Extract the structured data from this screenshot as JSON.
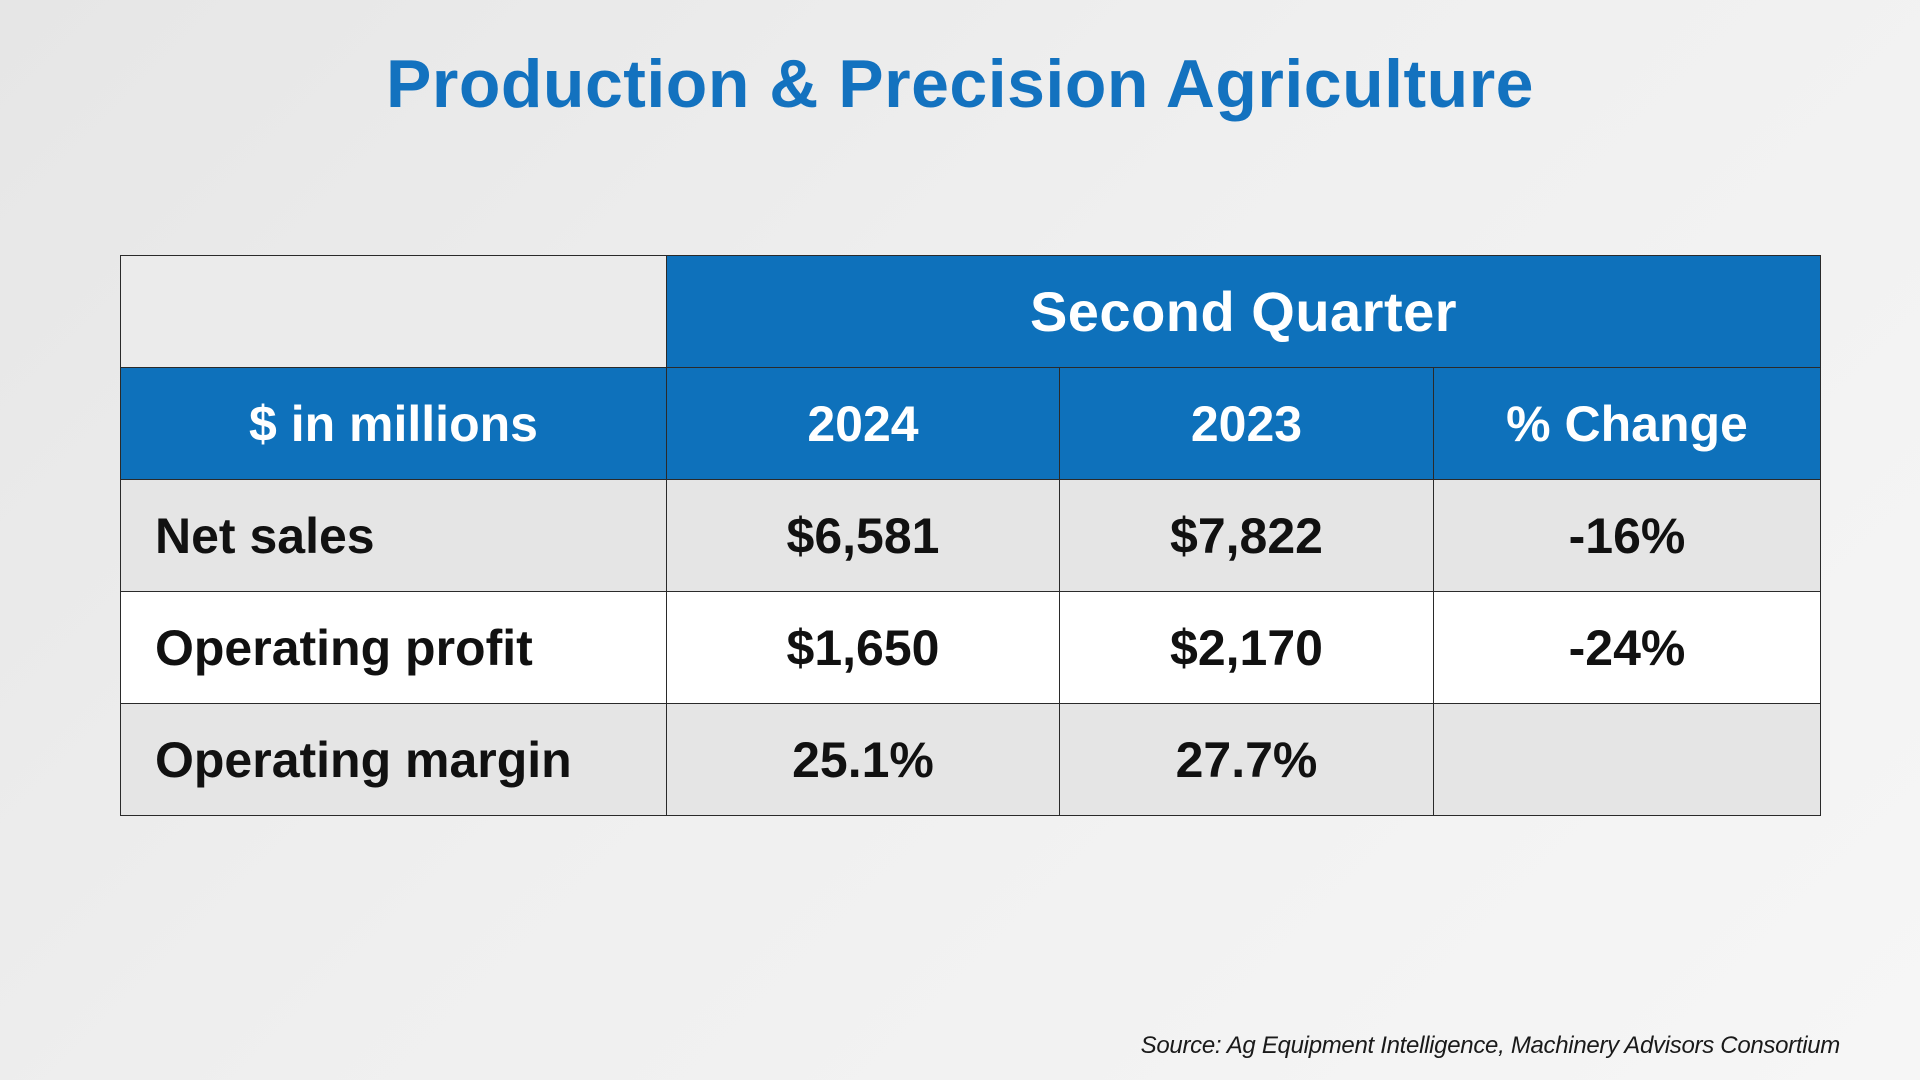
{
  "page": {
    "title": "Production & Precision Agriculture",
    "source": "Source: Ag Equipment Intelligence, Machinery Advisors Consortium"
  },
  "colors": {
    "title": "#1372bf",
    "header_fill": "#0e71bb",
    "shaded_row": "#e5e5e5"
  },
  "table": {
    "group_header": "Second Quarter",
    "columns": [
      "$ in millions",
      "2024",
      "2023",
      "% Change"
    ],
    "rows": [
      [
        "Net sales",
        "$6,581",
        "$7,822",
        "-16%"
      ],
      [
        "Operating profit",
        "$1,650",
        "$2,170",
        "-24%"
      ],
      [
        "Operating margin",
        "25.1%",
        "27.7%",
        ""
      ]
    ]
  },
  "chart_data": {
    "type": "table",
    "title": "Production & Precision Agriculture",
    "subtitle": "Second Quarter",
    "unit": "$ in millions",
    "columns": [
      "$ in millions",
      "2024",
      "2023",
      "% Change"
    ],
    "rows": [
      {
        "label": "Net sales",
        "2024": 6581,
        "2023": 7822,
        "pct_change": -16
      },
      {
        "label": "Operating profit",
        "2024": 1650,
        "2023": 2170,
        "pct_change": -24
      },
      {
        "label": "Operating margin",
        "2024": 25.1,
        "2023": 27.7,
        "pct_change": null
      }
    ],
    "source": "Source: Ag Equipment Intelligence, Machinery Advisors Consortium"
  }
}
